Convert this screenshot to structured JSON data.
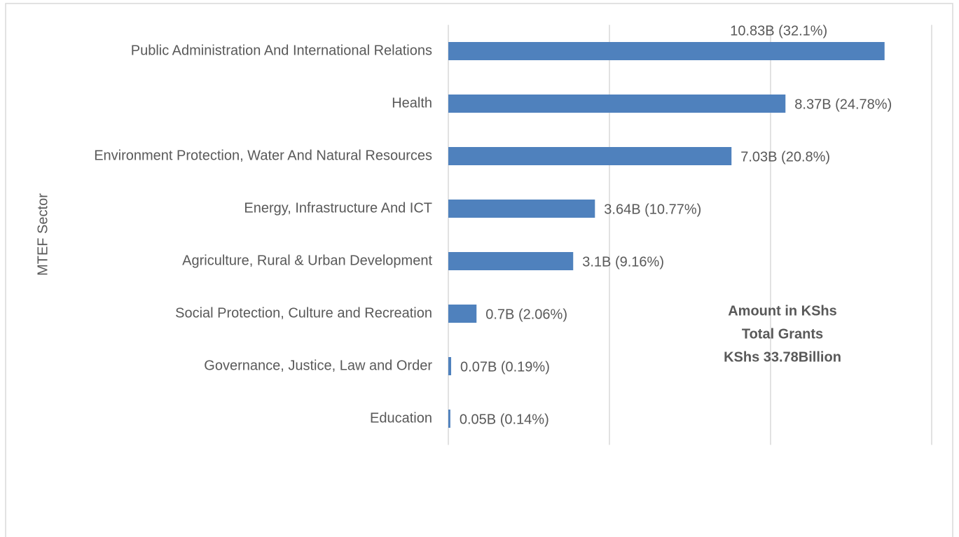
{
  "chart_data": {
    "type": "bar",
    "orientation": "horizontal",
    "ylabel": "MTEF Sector",
    "categories": [
      "Public Administration And International Relations",
      "Health",
      "Environment Protection, Water And Natural Resources",
      "Energy, Infrastructure And ICT",
      "Agriculture, Rural & Urban Development",
      "Social Protection, Culture and Recreation",
      "Governance, Justice, Law and Order",
      "Education"
    ],
    "values": [
      10.83,
      8.37,
      7.03,
      3.64,
      3.1,
      0.7,
      0.07,
      0.05
    ],
    "value_labels": [
      "10.83B (32.1%)",
      "8.37B (24.78%)",
      "7.03B (20.8%)",
      "3.64B (10.77%)",
      "3.1B (9.16%)",
      "0.7B (2.06%)",
      "0.07B (0.19%)",
      "0.05B (0.14%)"
    ],
    "color": "#4f81bd",
    "xlim": [
      0,
      12
    ],
    "xticks": [
      0,
      4,
      8,
      12
    ],
    "grid": true,
    "annotations": [
      "Amount in KShs",
      "Total Grants",
      "KShs 33.78Billion"
    ]
  }
}
